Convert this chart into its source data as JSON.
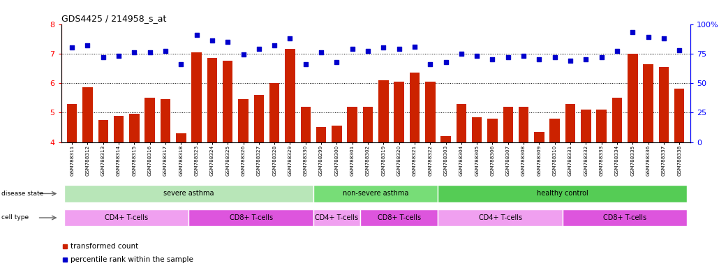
{
  "title": "GDS4425 / 214958_s_at",
  "samples": [
    "GSM788311",
    "GSM788312",
    "GSM788313",
    "GSM788314",
    "GSM788315",
    "GSM788316",
    "GSM788317",
    "GSM788318",
    "GSM788323",
    "GSM788324",
    "GSM788325",
    "GSM788326",
    "GSM788327",
    "GSM788328",
    "GSM788329",
    "GSM788330",
    "GSM788299",
    "GSM788300",
    "GSM788301",
    "GSM788302",
    "GSM788319",
    "GSM788320",
    "GSM788321",
    "GSM788322",
    "GSM788303",
    "GSM788304",
    "GSM788305",
    "GSM788306",
    "GSM788307",
    "GSM788308",
    "GSM788309",
    "GSM788310",
    "GSM788331",
    "GSM788332",
    "GSM788333",
    "GSM788334",
    "GSM788335",
    "GSM788336",
    "GSM788337",
    "GSM788338"
  ],
  "bar_values": [
    5.3,
    5.85,
    4.75,
    4.9,
    4.95,
    5.5,
    5.45,
    4.3,
    7.05,
    6.85,
    6.75,
    5.45,
    5.6,
    6.0,
    7.15,
    5.2,
    4.5,
    4.55,
    5.2,
    5.2,
    6.1,
    6.05,
    6.35,
    6.05,
    4.2,
    5.3,
    4.85,
    4.8,
    5.2,
    5.2,
    4.35,
    4.8,
    5.3,
    5.1,
    5.1,
    5.5,
    7.0,
    6.65,
    6.55,
    5.8
  ],
  "scatter_values_pct": [
    80,
    82,
    72,
    73,
    76,
    76,
    77,
    66,
    91,
    86,
    85,
    74,
    79,
    82,
    88,
    66,
    76,
    68,
    79,
    77,
    80,
    79,
    81,
    66,
    68,
    75,
    73,
    70,
    72,
    73,
    70,
    72,
    69,
    70,
    72,
    77,
    93,
    89,
    88,
    78
  ],
  "disease_state_groups": [
    {
      "label": "severe asthma",
      "start": 0,
      "end": 16,
      "color": "#b8e6b8"
    },
    {
      "label": "non-severe asthma",
      "start": 16,
      "end": 24,
      "color": "#77dd77"
    },
    {
      "label": "healthy control",
      "start": 24,
      "end": 40,
      "color": "#55cc55"
    }
  ],
  "cell_type_groups": [
    {
      "label": "CD4+ T-cells",
      "start": 0,
      "end": 8,
      "color": "#f0a0f0"
    },
    {
      "label": "CD8+ T-cells",
      "start": 8,
      "end": 16,
      "color": "#dd55dd"
    },
    {
      "label": "CD4+ T-cells",
      "start": 16,
      "end": 19,
      "color": "#f0a0f0"
    },
    {
      "label": "CD8+ T-cells",
      "start": 19,
      "end": 24,
      "color": "#dd55dd"
    },
    {
      "label": "CD4+ T-cells",
      "start": 24,
      "end": 32,
      "color": "#f0a0f0"
    },
    {
      "label": "CD8+ T-cells",
      "start": 32,
      "end": 40,
      "color": "#dd55dd"
    }
  ],
  "bar_color": "#cc2200",
  "scatter_color": "#0000cc",
  "ylim_left": [
    4.0,
    8.0
  ],
  "ylim_right": [
    0,
    100
  ],
  "yticks_left": [
    4,
    5,
    6,
    7,
    8
  ],
  "yticks_right": [
    0,
    25,
    50,
    75,
    100
  ],
  "grid_values": [
    5,
    6,
    7
  ],
  "legend_items": [
    {
      "label": "transformed count",
      "color": "#cc2200"
    },
    {
      "label": "percentile rank within the sample",
      "color": "#0000cc"
    }
  ]
}
